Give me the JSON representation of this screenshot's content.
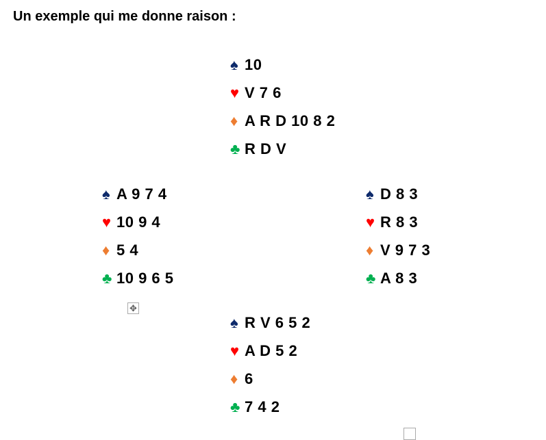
{
  "title": "Un exemple qui me donne raison :",
  "suits": {
    "spade": {
      "symbol": "♠",
      "color": "#0e2a6b"
    },
    "heart": {
      "symbol": "♥",
      "color": "#ff0000"
    },
    "diamond": {
      "symbol": "♦",
      "color": "#ed7d31"
    },
    "club": {
      "symbol": "♣",
      "color": "#00b050"
    }
  },
  "hands": {
    "north": {
      "spade": "10",
      "heart": "V 7 6",
      "diamond": "A R D 10 8 2",
      "club": "R D V"
    },
    "west": {
      "spade": "A 9 7 4",
      "heart": "10 9 4",
      "diamond": "5 4",
      "club": "10 9 6 5"
    },
    "east": {
      "spade": "D 8 3",
      "heart": "R 8 3",
      "diamond": "V 9 7 3",
      "club": "A 8 3"
    },
    "south": {
      "spade": "R V 6 5 2",
      "heart": "A D 5 2",
      "diamond": "6",
      "club": "7 4 2"
    }
  },
  "table_move_handle_icon": "move-arrows-icon",
  "table_resize_handle_icon": "resize-square-icon"
}
